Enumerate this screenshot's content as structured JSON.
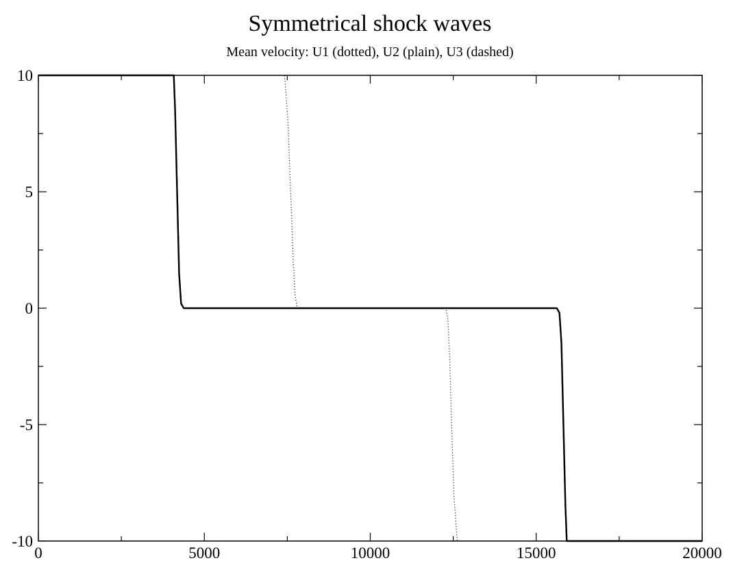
{
  "chart_data": {
    "type": "line",
    "title": "Symmetrical shock waves",
    "subtitle": "Mean velocity: U1 (dotted), U2 (plain), U3 (dashed)",
    "xlabel": "",
    "ylabel": "",
    "xlim": [
      0,
      20000
    ],
    "ylim": [
      -10,
      10
    ],
    "x_ticks": [
      0,
      5000,
      10000,
      15000,
      20000
    ],
    "x_tick_labels": [
      "0",
      "5000",
      "10000",
      "15000",
      "20000"
    ],
    "x_minor_ticks": [
      2500,
      7500,
      12500,
      17500
    ],
    "y_ticks": [
      -10,
      -5,
      0,
      5,
      10
    ],
    "y_tick_labels": [
      "-10",
      "-5",
      "0",
      "5",
      "10"
    ],
    "y_minor_ticks": [
      -7.5,
      -2.5,
      2.5,
      7.5
    ],
    "grid": false,
    "legend": "none",
    "series": [
      {
        "name": "U1",
        "style": "dotted",
        "color": "#000000",
        "x": [
          0,
          7420,
          7520,
          7600,
          7680,
          7740,
          7800,
          12280,
          12340,
          12390,
          12450,
          12520,
          12620,
          20000
        ],
        "y": [
          10,
          10,
          8,
          5,
          2,
          0.5,
          0,
          0,
          -0.5,
          -2,
          -5,
          -8,
          -10,
          -10
        ]
      },
      {
        "name": "U2",
        "style": "solid",
        "color": "#000000",
        "x": [
          0,
          4080,
          4120,
          4180,
          4240,
          4300,
          4380,
          15620,
          15700,
          15760,
          15820,
          15880,
          15920,
          20000
        ],
        "y": [
          10,
          10,
          8.5,
          5,
          1.5,
          0.2,
          0,
          0,
          -0.2,
          -1.5,
          -5,
          -8.5,
          -10,
          -10
        ]
      },
      {
        "name": "U3",
        "style": "dashed",
        "color": "#000000",
        "x": [
          0,
          4090,
          4130,
          4190,
          4250,
          4310,
          4390,
          15610,
          15690,
          15750,
          15810,
          15870,
          15910,
          20000
        ],
        "y": [
          10,
          10,
          8.5,
          5,
          1.5,
          0.2,
          0,
          0,
          -0.2,
          -1.5,
          -5,
          -8.5,
          -10,
          -10
        ]
      }
    ]
  }
}
